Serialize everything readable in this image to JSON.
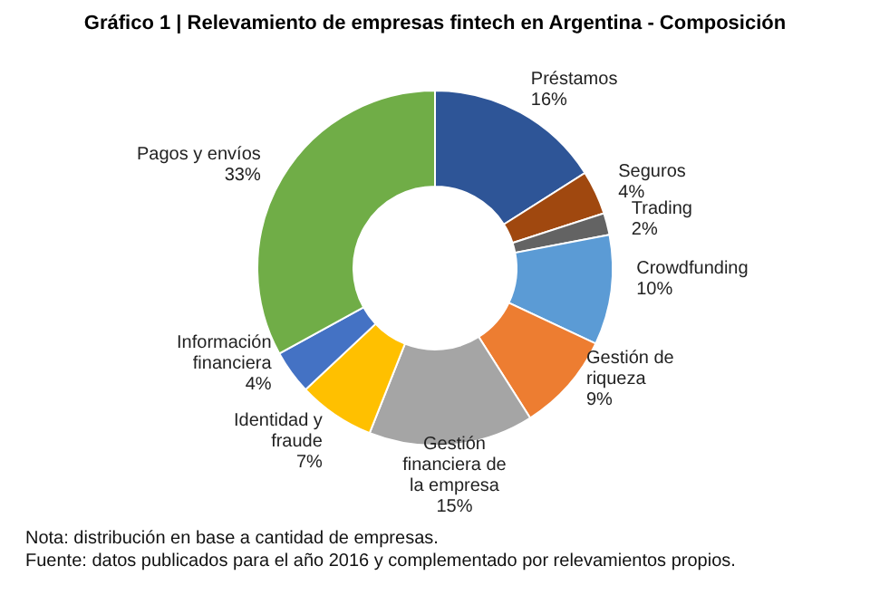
{
  "chart_data": {
    "type": "donut",
    "title": "Gráfico 1 | Relevamiento de empresas fintech en Argentina - Composición",
    "categories": [
      "Préstamos",
      "Seguros",
      "Trading",
      "Crowdfunding",
      "Gestión de riqueza",
      "Gestión financiera de la empresa",
      "Identidad y fraude",
      "Información financiera",
      "Pagos y envíos"
    ],
    "values": [
      16,
      4,
      2,
      10,
      9,
      15,
      7,
      4,
      33
    ],
    "value_labels": [
      "16%",
      "4%",
      "2%",
      "10%",
      "9%",
      "15%",
      "7%",
      "4%",
      "33%"
    ],
    "colors": [
      "#2e5597",
      "#a0480f",
      "#636363",
      "#5b9bd5",
      "#ed7d31",
      "#a5a5a5",
      "#ffc000",
      "#4472c4",
      "#70ad47"
    ],
    "annotations": [
      "Nota: distribución en base a cantidad de empresas.",
      "Fuente: datos publicados para el año 2016 y complementado por relevamientos propios."
    ],
    "legend": false
  }
}
